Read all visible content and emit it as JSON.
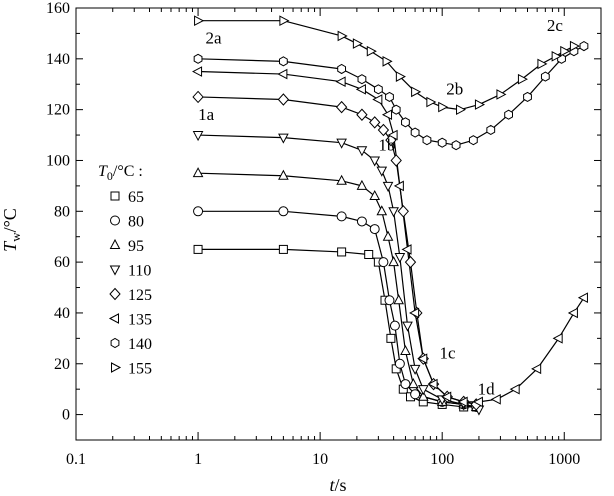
{
  "chart_data": {
    "type": "line",
    "xscale": "log",
    "xlim": [
      0.1,
      2000
    ],
    "ylim": [
      -10,
      160
    ],
    "xticks": [
      "0.1",
      "1",
      "10",
      "100",
      "1000"
    ],
    "yticks": [
      "0",
      "20",
      "40",
      "60",
      "80",
      "100",
      "120",
      "140",
      "160"
    ],
    "xlabel": {
      "sym": "t",
      "sep": "/",
      "unit": "s"
    },
    "ylabel": {
      "sym": "T",
      "sub": "w",
      "sep": "/",
      "unit": "°C"
    },
    "legend_title": {
      "sym": "T",
      "sub": "0",
      "unit": "/°C :"
    },
    "grid": false,
    "annotations": [
      {
        "text": "2a",
        "x": 1.15,
        "y": 146
      },
      {
        "text": "2b",
        "x": 108,
        "y": 126
      },
      {
        "text": "2c",
        "x": 720,
        "y": 151
      },
      {
        "text": "1a",
        "x": 1.0,
        "y": 116
      },
      {
        "text": "1b",
        "x": 30,
        "y": 104
      },
      {
        "text": "1c",
        "x": 95,
        "y": 22
      },
      {
        "text": "1d",
        "x": 195,
        "y": 8
      }
    ],
    "series": [
      {
        "name": "65",
        "marker": "square",
        "points": [
          [
            1,
            65
          ],
          [
            5,
            65
          ],
          [
            15,
            64
          ],
          [
            25,
            63
          ],
          [
            30,
            60
          ],
          [
            34,
            45
          ],
          [
            38,
            30
          ],
          [
            42,
            18
          ],
          [
            48,
            10
          ],
          [
            55,
            7
          ],
          [
            70,
            5
          ],
          [
            100,
            4
          ],
          [
            150,
            3
          ],
          [
            190,
            3
          ]
        ]
      },
      {
        "name": "80",
        "marker": "circle",
        "points": [
          [
            1,
            80
          ],
          [
            5,
            80
          ],
          [
            15,
            78
          ],
          [
            22,
            76
          ],
          [
            28,
            73
          ],
          [
            33,
            60
          ],
          [
            37,
            45
          ],
          [
            41,
            35
          ],
          [
            45,
            20
          ],
          [
            50,
            12
          ],
          [
            60,
            8
          ],
          [
            100,
            5
          ],
          [
            150,
            4
          ],
          [
            190,
            3
          ]
        ]
      },
      {
        "name": "95",
        "marker": "triangle-up",
        "points": [
          [
            1,
            95
          ],
          [
            5,
            94
          ],
          [
            15,
            92
          ],
          [
            22,
            90
          ],
          [
            28,
            86
          ],
          [
            32,
            80
          ],
          [
            36,
            70
          ],
          [
            40,
            60
          ],
          [
            44,
            45
          ],
          [
            50,
            25
          ],
          [
            58,
            12
          ],
          [
            70,
            7
          ],
          [
            100,
            5
          ],
          [
            150,
            4
          ],
          [
            190,
            3
          ]
        ]
      },
      {
        "name": "110",
        "marker": "triangle-down",
        "points": [
          [
            1,
            110
          ],
          [
            5,
            109
          ],
          [
            15,
            107
          ],
          [
            22,
            104
          ],
          [
            28,
            100
          ],
          [
            32,
            96
          ],
          [
            36,
            90
          ],
          [
            40,
            80
          ],
          [
            45,
            62
          ],
          [
            52,
            35
          ],
          [
            60,
            18
          ],
          [
            70,
            10
          ],
          [
            100,
            6
          ],
          [
            150,
            4
          ],
          [
            200,
            2
          ]
        ]
      },
      {
        "name": "125",
        "marker": "diamond",
        "points": [
          [
            1,
            125
          ],
          [
            5,
            124
          ],
          [
            15,
            121
          ],
          [
            22,
            118
          ],
          [
            28,
            115
          ],
          [
            33,
            112
          ],
          [
            38,
            108
          ],
          [
            42,
            100
          ],
          [
            48,
            80
          ],
          [
            55,
            60
          ],
          [
            62,
            40
          ],
          [
            70,
            22
          ],
          [
            85,
            12
          ],
          [
            110,
            7
          ],
          [
            150,
            5
          ],
          [
            190,
            4
          ]
        ]
      },
      {
        "name": "135",
        "marker": "triangle-left",
        "points": [
          [
            1,
            135
          ],
          [
            5,
            134
          ],
          [
            15,
            131
          ],
          [
            22,
            128
          ],
          [
            30,
            124
          ],
          [
            36,
            118
          ],
          [
            40,
            110
          ],
          [
            45,
            90
          ],
          [
            52,
            65
          ],
          [
            60,
            40
          ],
          [
            70,
            22
          ],
          [
            85,
            12
          ],
          [
            110,
            7
          ],
          [
            150,
            5
          ],
          [
            200,
            5
          ],
          [
            280,
            6
          ],
          [
            400,
            10
          ],
          [
            600,
            18
          ],
          [
            900,
            30
          ],
          [
            1200,
            40
          ],
          [
            1450,
            46
          ]
        ]
      },
      {
        "name": "140",
        "marker": "hexagon",
        "points": [
          [
            1,
            140
          ],
          [
            5,
            139
          ],
          [
            15,
            136
          ],
          [
            22,
            132
          ],
          [
            30,
            128
          ],
          [
            37,
            125
          ],
          [
            42,
            120
          ],
          [
            50,
            115
          ],
          [
            60,
            111
          ],
          [
            75,
            108
          ],
          [
            100,
            107
          ],
          [
            130,
            106
          ],
          [
            180,
            108
          ],
          [
            250,
            112
          ],
          [
            350,
            118
          ],
          [
            500,
            125
          ],
          [
            700,
            133
          ],
          [
            950,
            140
          ],
          [
            1200,
            143
          ],
          [
            1450,
            145
          ]
        ]
      },
      {
        "name": "155",
        "marker": "triangle-right",
        "points": [
          [
            1,
            155
          ],
          [
            5,
            155
          ],
          [
            15,
            149
          ],
          [
            20,
            146
          ],
          [
            26,
            143
          ],
          [
            35,
            139
          ],
          [
            45,
            133
          ],
          [
            60,
            127
          ],
          [
            80,
            123
          ],
          [
            100,
            121
          ],
          [
            140,
            120
          ],
          [
            200,
            122
          ],
          [
            300,
            126
          ],
          [
            450,
            132
          ],
          [
            650,
            138
          ],
          [
            850,
            141
          ],
          [
            1000,
            143
          ],
          [
            1200,
            145
          ]
        ]
      }
    ]
  }
}
